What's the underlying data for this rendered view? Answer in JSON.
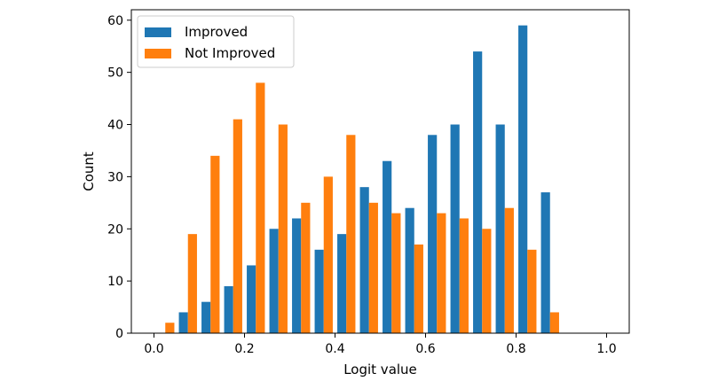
{
  "chart_data": {
    "type": "bar",
    "title": "",
    "xlabel": "Logit value",
    "ylabel": "Count",
    "xlim": [
      -0.05,
      1.05
    ],
    "ylim": [
      0,
      62
    ],
    "xticks": [
      0.0,
      0.2,
      0.4,
      0.6,
      0.8,
      1.0
    ],
    "xtick_labels": [
      "0.0",
      "0.2",
      "0.4",
      "0.6",
      "0.8",
      "1.0"
    ],
    "yticks": [
      0,
      10,
      20,
      30,
      40,
      50,
      60
    ],
    "ytick_labels": [
      "0",
      "10",
      "20",
      "30",
      "40",
      "50",
      "60"
    ],
    "bin_edges": [
      0.0,
      0.05,
      0.1,
      0.15,
      0.2,
      0.25,
      0.3,
      0.35,
      0.4,
      0.45,
      0.5,
      0.55,
      0.6,
      0.65,
      0.7,
      0.75,
      0.8,
      0.85,
      0.9
    ],
    "series": [
      {
        "name": "Improved",
        "color": "#1f77b4",
        "values": [
          0,
          4,
          6,
          9,
          13,
          20,
          22,
          16,
          19,
          28,
          33,
          24,
          38,
          40,
          54,
          40,
          59,
          27
        ]
      },
      {
        "name": "Not Improved",
        "color": "#ff7f0e",
        "values": [
          2,
          19,
          34,
          41,
          48,
          40,
          25,
          30,
          38,
          25,
          23,
          17,
          23,
          22,
          20,
          24,
          16,
          4
        ]
      }
    ],
    "legend_position": "top-left",
    "grid": false
  }
}
